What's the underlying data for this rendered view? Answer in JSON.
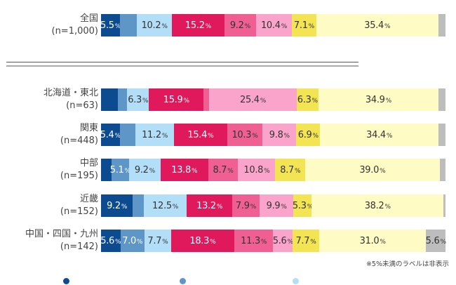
{
  "chart_data": {
    "type": "bar",
    "orientation": "horizontal-stacked-100",
    "note": "※5%未満のラベルは非表示",
    "label_threshold_percent": 5,
    "xlim": [
      0,
      100
    ],
    "grid": false,
    "legend_position": "bottom",
    "series_colors": [
      "#0d4b91",
      "#5f96c8",
      "#b3def8",
      "#e0185c",
      "#ef5f92",
      "#fba4cb",
      "#f2e453",
      "#fffbc4",
      "#bdbdbd"
    ],
    "series": [
      {
        "name": "",
        "color": "#0d4b91"
      },
      {
        "name": "",
        "color": "#5f96c8"
      },
      {
        "name": "",
        "color": "#b3def8"
      },
      {
        "name": "",
        "color": "#e0185c"
      },
      {
        "name": "",
        "color": "#ef5f92"
      },
      {
        "name": "",
        "color": "#fba4cb"
      },
      {
        "name": "",
        "color": "#f2e453"
      },
      {
        "name": "",
        "color": "#fffbc4"
      },
      {
        "name": "",
        "color": "#bdbdbd"
      }
    ],
    "categories": [
      {
        "name": "全国",
        "n": "(n=1,000)",
        "values": [
          5.5,
          4.9,
          10.2,
          15.2,
          9.2,
          10.4,
          7.1,
          35.4,
          2.1
        ]
      },
      {
        "name": "北海道・東北",
        "n": "(n=63)",
        "values": [
          4.8,
          2.8,
          6.3,
          15.9,
          1.6,
          25.4,
          6.3,
          34.9,
          2.0
        ]
      },
      {
        "name": "関東",
        "n": "(n=448)",
        "values": [
          5.4,
          4.6,
          11.2,
          15.4,
          10.3,
          9.8,
          6.9,
          34.4,
          2.0
        ]
      },
      {
        "name": "中部",
        "n": "(n=195)",
        "values": [
          3.0,
          5.1,
          9.2,
          13.8,
          8.7,
          10.8,
          8.7,
          39.0,
          1.7
        ]
      },
      {
        "name": "近畿",
        "n": "(n=152)",
        "values": [
          9.2,
          3.2,
          12.5,
          13.2,
          7.9,
          9.9,
          5.3,
          38.2,
          0.6
        ]
      },
      {
        "name": "中国・四国・九州",
        "n": "(n=142)",
        "values": [
          5.6,
          7.0,
          7.7,
          18.3,
          11.3,
          5.6,
          7.7,
          31.0,
          5.6
        ]
      }
    ],
    "label_colors": [
      "#ffffff",
      "#ffffff",
      "#333333",
      "#ffffff",
      "#333333",
      "#333333",
      "#333333",
      "#333333",
      "#333333"
    ],
    "percent_suffix": "%"
  }
}
